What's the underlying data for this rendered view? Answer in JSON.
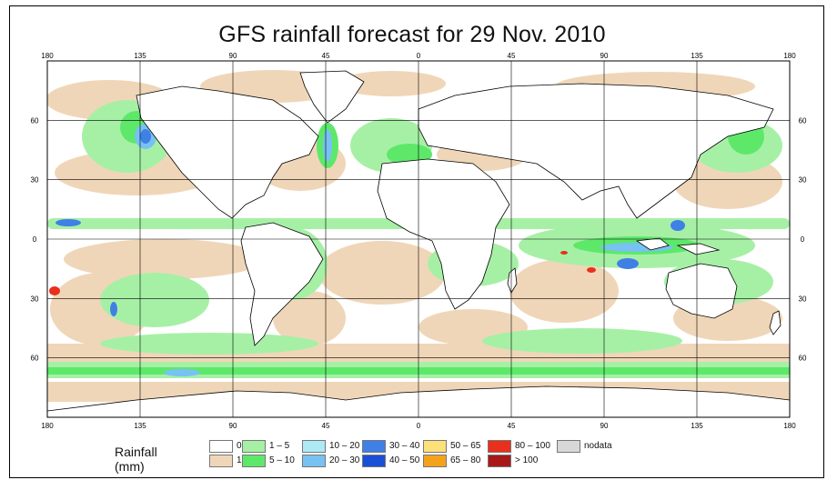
{
  "title": "GFS rainfall forecast for 29 Nov. 2010",
  "map": {
    "longitude_ticks": [
      "180",
      "135",
      "90",
      "45",
      "0",
      "45",
      "90",
      "135",
      "180"
    ],
    "latitude_ticks": [
      "60",
      "30",
      "0",
      "30",
      "60"
    ],
    "background_color": "#ffffff",
    "land_outline_color": "#000000"
  },
  "legend": {
    "title": "Rainfall (mm)",
    "items": [
      {
        "label": "0",
        "color": "#ffffff"
      },
      {
        "label": "1",
        "color": "#f0d6b8"
      },
      {
        "label": "1 – 5",
        "color": "#a6f0a6"
      },
      {
        "label": "5 – 10",
        "color": "#5ee86a"
      },
      {
        "label": "10 – 20",
        "color": "#aeeaf6"
      },
      {
        "label": "20 – 30",
        "color": "#77c2f2"
      },
      {
        "label": "30 – 40",
        "color": "#3f80e6"
      },
      {
        "label": "40 – 50",
        "color": "#1a4fd8"
      },
      {
        "label": "50 – 65",
        "color": "#fce07a"
      },
      {
        "label": "65 – 80",
        "color": "#f4a21c"
      },
      {
        "label": "80 – 100",
        "color": "#e8301c"
      },
      {
        "label": "> 100",
        "color": "#a81818"
      },
      {
        "label": "nodata",
        "color": "#d8d8d8"
      }
    ]
  }
}
